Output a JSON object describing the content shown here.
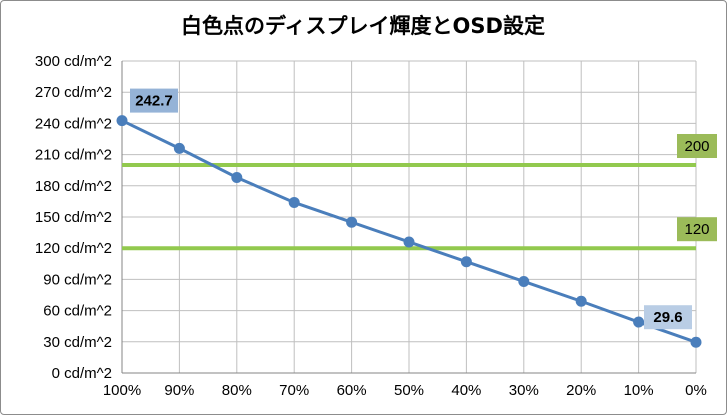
{
  "chart_data": {
    "type": "line",
    "title": "白色点のディスプレイ輝度とOSD設定",
    "categories": [
      "100%",
      "90%",
      "80%",
      "70%",
      "60%",
      "50%",
      "40%",
      "30%",
      "20%",
      "10%",
      "0%"
    ],
    "series": [
      {
        "values": [
          242.7,
          216,
          188,
          164,
          145,
          126,
          107,
          88,
          69,
          49,
          29.6
        ]
      }
    ],
    "y_ticks": [
      "0 cd/m^2",
      "30 cd/m^2",
      "60 cd/m^2",
      "90 cd/m^2",
      "120 cd/m^2",
      "150 cd/m^2",
      "180 cd/m^2",
      "210 cd/m^2",
      "240 cd/m^2",
      "270 cd/m^2",
      "300 cd/m^2"
    ],
    "ylim": [
      0,
      300
    ],
    "reference_lines": [
      {
        "value": 200,
        "label": "200"
      },
      {
        "value": 120,
        "label": "120"
      }
    ],
    "data_labels": [
      {
        "index": 0,
        "text": "242.7"
      },
      {
        "index": 10,
        "text": "29.6"
      }
    ],
    "colors": {
      "series": "#4a7ebb",
      "reference": "#92c94e",
      "start_label_bg": "#95b3d7",
      "end_label_bg": "#b9cde5",
      "ref_label_bg": "#9bbb59"
    },
    "grid": true
  }
}
